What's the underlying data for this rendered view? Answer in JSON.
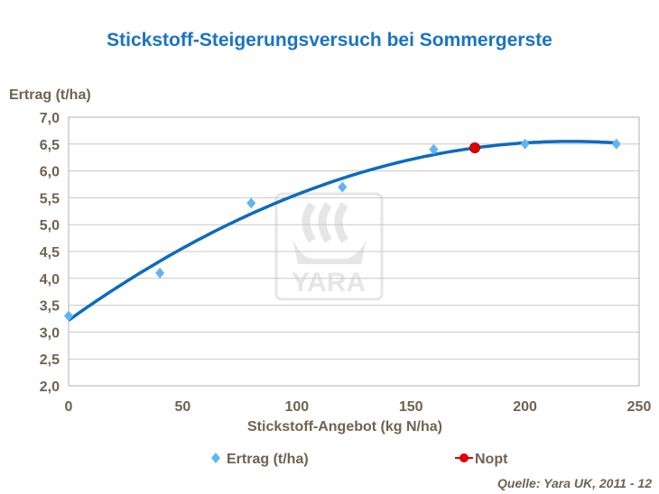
{
  "chart_data": {
    "type": "scatter",
    "title": "Stickstoff-Steigerungsversuch bei Sommergerste",
    "xlabel": "Stickstoff-Angebot (kg N/ha)",
    "ylabel": "Ertrag (t/ha)",
    "xlim": [
      0,
      250
    ],
    "ylim": [
      2.0,
      7.0
    ],
    "xticks": [
      "0",
      "50",
      "100",
      "150",
      "200",
      "250"
    ],
    "yticks": [
      "2,0",
      "2,5",
      "3,0",
      "3,5",
      "4,0",
      "4,5",
      "5,0",
      "5,5",
      "6,0",
      "6,5",
      "7,0"
    ],
    "grid": "horizontal",
    "legend": "bottom",
    "series": [
      {
        "name": "Ertrag (t/ha)",
        "marker": "diamond",
        "color": "#5fb4f5",
        "x": [
          0,
          40,
          80,
          120,
          160,
          200,
          240
        ],
        "y": [
          3.3,
          4.1,
          5.4,
          5.7,
          6.4,
          6.5,
          6.5
        ]
      },
      {
        "name": "Nopt",
        "marker": "circle",
        "color": "#e00000",
        "x": [
          178
        ],
        "y": [
          6.43
        ]
      }
    ],
    "trendline": {
      "type": "polynomial-2",
      "color": "#0d6bbf",
      "coefficients": [
        3.22,
        0.03027,
        -6.88e-05
      ]
    }
  },
  "source": "Quelle: Yara UK, 2011 - 12",
  "watermark": "YARA"
}
